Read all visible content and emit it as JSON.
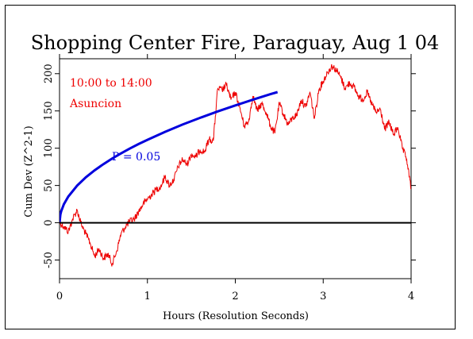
{
  "chart_data": {
    "type": "line",
    "title": "Shopping Center Fire, Paraguay, Aug 1 04",
    "xlabel": "Hours (Resolution Seconds)",
    "ylabel": "Cum Dev (Z^2-1)",
    "xlim": [
      0,
      4
    ],
    "ylim": [
      -75,
      220
    ],
    "x_ticks": [
      0,
      1,
      2,
      3,
      4
    ],
    "y_ticks": [
      -50,
      0,
      50,
      100,
      150,
      200
    ],
    "grid": false,
    "annotations": {
      "time_range": "10:00 to 14:00",
      "location": "Asuncion",
      "p_label": "P = 0.05"
    },
    "colors": {
      "data_series": "#ee0000",
      "p_curve": "#0000dd",
      "axis": "#000000"
    },
    "series": [
      {
        "x": [
          0,
          0.05,
          0.1,
          0.15,
          0.2,
          0.25,
          0.3,
          0.35,
          0.4,
          0.45,
          0.5,
          0.55,
          0.6,
          0.65,
          0.7,
          0.75,
          0.8,
          0.85,
          0.9,
          0.95,
          1.0,
          1.05,
          1.1,
          1.15,
          1.2,
          1.25,
          1.3,
          1.35,
          1.4,
          1.45,
          1.5,
          1.55,
          1.6,
          1.65,
          1.7,
          1.75,
          1.8,
          1.85,
          1.9,
          1.95,
          2.0,
          2.05,
          2.1,
          2.15,
          2.2,
          2.25,
          2.3,
          2.35,
          2.4,
          2.45,
          2.5,
          2.55,
          2.6,
          2.65,
          2.7,
          2.75,
          2.8,
          2.85,
          2.9,
          2.95,
          3.0,
          3.05,
          3.1,
          3.15,
          3.2,
          3.25,
          3.3,
          3.35,
          3.4,
          3.45,
          3.5,
          3.55,
          3.6,
          3.65,
          3.7,
          3.75,
          3.8,
          3.85,
          3.9,
          3.95,
          4.0
        ],
        "values": [
          0,
          -5,
          -12,
          5,
          17,
          -3,
          -15,
          -28,
          -45,
          -35,
          -48,
          -42,
          -55,
          -38,
          -15,
          -5,
          2,
          5,
          15,
          25,
          32,
          38,
          45,
          48,
          62,
          50,
          58,
          75,
          85,
          78,
          92,
          88,
          98,
          95,
          112,
          110,
          180,
          178,
          185,
          165,
          175,
          155,
          130,
          135,
          170,
          150,
          160,
          148,
          130,
          120,
          160,
          145,
          132,
          140,
          145,
          165,
          155,
          175,
          140,
          178,
          190,
          202,
          210,
          205,
          195,
          180,
          188,
          182,
          170,
          165,
          175,
          160,
          148,
          152,
          125,
          135,
          118,
          128,
          100,
          85,
          45
        ]
      },
      {
        "x": [
          0,
          0.01,
          0.02,
          0.05,
          0.1,
          0.2,
          0.3,
          0.4,
          0.5,
          0.6,
          0.7,
          0.8,
          0.9,
          1.0,
          1.2,
          1.4,
          1.6,
          1.8,
          2.0,
          2.2,
          2.4,
          2.48
        ],
        "values": [
          0,
          11.1,
          15.7,
          24.9,
          35.2,
          49.8,
          61.0,
          70.4,
          78.7,
          86.2,
          93.1,
          99.6,
          105.6,
          111.3,
          121.9,
          131.7,
          140.8,
          149.4,
          157.4,
          165.1,
          172.5,
          175.3
        ]
      }
    ]
  }
}
